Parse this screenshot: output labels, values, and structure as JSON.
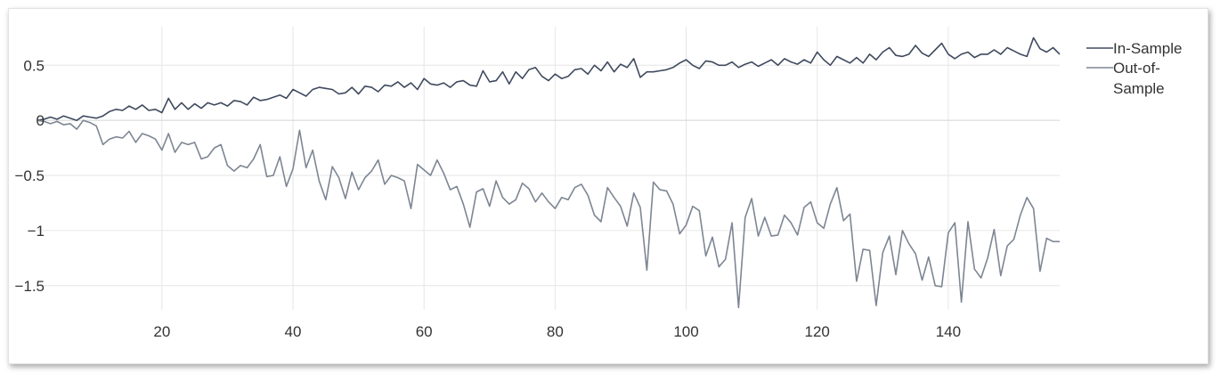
{
  "chart_data": {
    "type": "line",
    "title": "",
    "xlabel": "",
    "ylabel": "",
    "xlim": [
      1,
      157
    ],
    "ylim": [
      -1.72,
      0.85
    ],
    "x_ticks": [
      20,
      40,
      60,
      80,
      100,
      120,
      140
    ],
    "x_tick_labels": [
      "20",
      "40",
      "60",
      "80",
      "100",
      "120",
      "140"
    ],
    "y_ticks": [
      0.5,
      0,
      -0.5,
      -1,
      -1.5
    ],
    "y_tick_labels": [
      "0.5",
      "0",
      "−0.5",
      "−1",
      "−1.5"
    ],
    "grid": true,
    "legend_position": "top-right",
    "series": [
      {
        "name": "In-Sample",
        "color": "#3f4a5e",
        "x_start": 1,
        "values": [
          0.0,
          0.01,
          0.03,
          0.01,
          0.04,
          0.02,
          0.0,
          0.04,
          0.03,
          0.02,
          0.04,
          0.08,
          0.1,
          0.09,
          0.13,
          0.1,
          0.14,
          0.09,
          0.1,
          0.07,
          0.2,
          0.1,
          0.16,
          0.1,
          0.15,
          0.11,
          0.16,
          0.14,
          0.16,
          0.13,
          0.18,
          0.17,
          0.14,
          0.21,
          0.18,
          0.19,
          0.21,
          0.23,
          0.2,
          0.28,
          0.25,
          0.22,
          0.28,
          0.3,
          0.29,
          0.28,
          0.24,
          0.25,
          0.3,
          0.24,
          0.31,
          0.3,
          0.26,
          0.32,
          0.31,
          0.35,
          0.3,
          0.34,
          0.28,
          0.38,
          0.33,
          0.32,
          0.34,
          0.3,
          0.35,
          0.36,
          0.32,
          0.31,
          0.45,
          0.35,
          0.36,
          0.44,
          0.33,
          0.44,
          0.38,
          0.46,
          0.48,
          0.4,
          0.36,
          0.42,
          0.38,
          0.4,
          0.46,
          0.47,
          0.42,
          0.5,
          0.45,
          0.53,
          0.44,
          0.51,
          0.48,
          0.56,
          0.39,
          0.44,
          0.44,
          0.45,
          0.46,
          0.48,
          0.52,
          0.55,
          0.5,
          0.47,
          0.54,
          0.53,
          0.5,
          0.5,
          0.53,
          0.48,
          0.51,
          0.53,
          0.49,
          0.52,
          0.55,
          0.5,
          0.56,
          0.53,
          0.51,
          0.55,
          0.52,
          0.62,
          0.55,
          0.5,
          0.58,
          0.55,
          0.52,
          0.57,
          0.52,
          0.6,
          0.55,
          0.62,
          0.66,
          0.59,
          0.58,
          0.6,
          0.68,
          0.61,
          0.58,
          0.64,
          0.7,
          0.6,
          0.56,
          0.6,
          0.62,
          0.57,
          0.6,
          0.6,
          0.64,
          0.6,
          0.66,
          0.63,
          0.6,
          0.58,
          0.75,
          0.65,
          0.62,
          0.66,
          0.6
        ]
      },
      {
        "name": "Out-of-Sample",
        "color": "#7d8693",
        "x_start": 1,
        "values": [
          0.0,
          -0.01,
          -0.03,
          -0.01,
          -0.04,
          -0.03,
          -0.08,
          0.0,
          -0.02,
          -0.05,
          -0.22,
          -0.17,
          -0.15,
          -0.16,
          -0.1,
          -0.2,
          -0.12,
          -0.14,
          -0.17,
          -0.27,
          -0.12,
          -0.29,
          -0.2,
          -0.22,
          -0.2,
          -0.35,
          -0.33,
          -0.25,
          -0.22,
          -0.41,
          -0.46,
          -0.41,
          -0.43,
          -0.35,
          -0.22,
          -0.51,
          -0.5,
          -0.33,
          -0.6,
          -0.44,
          -0.09,
          -0.43,
          -0.27,
          -0.55,
          -0.72,
          -0.42,
          -0.52,
          -0.71,
          -0.47,
          -0.63,
          -0.52,
          -0.46,
          -0.36,
          -0.58,
          -0.5,
          -0.52,
          -0.55,
          -0.8,
          -0.4,
          -0.45,
          -0.5,
          -0.36,
          -0.48,
          -0.63,
          -0.6,
          -0.76,
          -0.97,
          -0.65,
          -0.62,
          -0.78,
          -0.55,
          -0.7,
          -0.76,
          -0.72,
          -0.57,
          -0.62,
          -0.74,
          -0.66,
          -0.74,
          -0.8,
          -0.7,
          -0.72,
          -0.61,
          -0.58,
          -0.68,
          -0.86,
          -0.92,
          -0.61,
          -0.7,
          -0.78,
          -0.96,
          -0.66,
          -0.79,
          -1.36,
          -0.56,
          -0.63,
          -0.64,
          -0.76,
          -1.03,
          -0.95,
          -0.78,
          -0.82,
          -1.23,
          -1.06,
          -1.33,
          -1.26,
          -0.93,
          -1.7,
          -0.88,
          -0.71,
          -1.05,
          -0.88,
          -1.05,
          -1.04,
          -0.86,
          -0.93,
          -1.04,
          -0.79,
          -0.74,
          -0.93,
          -0.98,
          -0.76,
          -0.61,
          -0.91,
          -0.85,
          -1.46,
          -1.17,
          -1.18,
          -1.68,
          -1.2,
          -1.05,
          -1.4,
          -1.0,
          -1.12,
          -1.21,
          -1.45,
          -1.24,
          -1.5,
          -1.51,
          -1.02,
          -0.93,
          -1.65,
          -0.92,
          -1.35,
          -1.43,
          -1.25,
          -0.99,
          -1.41,
          -1.14,
          -1.08,
          -0.86,
          -0.7,
          -0.8,
          -1.37,
          -1.07,
          -1.1,
          -1.1
        ]
      }
    ]
  }
}
